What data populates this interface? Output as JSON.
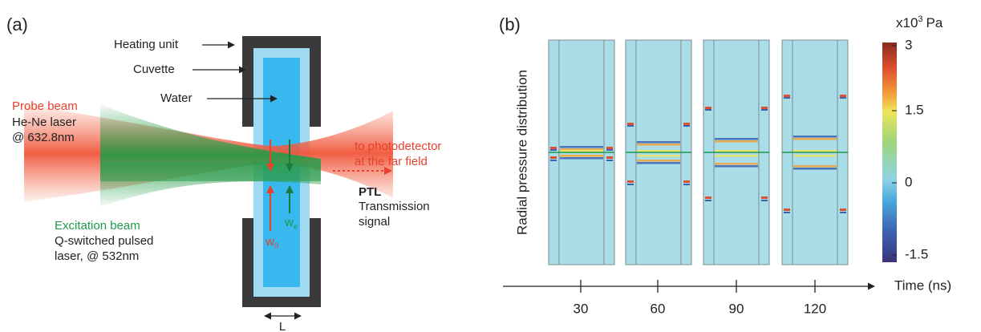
{
  "panel_a": {
    "label": "(a)",
    "heating_unit": "Heating unit",
    "cuvette": "Cuvette",
    "water": "Water",
    "probe_beam": {
      "title": "Probe beam",
      "lines": [
        "He-Ne laser",
        "@ 632.8nm"
      ]
    },
    "excitation_beam": {
      "title": "Excitation beam",
      "lines": [
        "Q-switched pulsed",
        "laser, @ 532nm"
      ]
    },
    "output": {
      "lines": [
        "to photodetector",
        "at the far field"
      ]
    },
    "ptl": {
      "title": "PTL",
      "lines": [
        "Transmission",
        "signal"
      ]
    },
    "w0": {
      "symbol": "w",
      "subscript": "0"
    },
    "we": {
      "symbol": "w",
      "subscript": "e"
    },
    "length": "L"
  },
  "panel_b": {
    "label": "(b)",
    "y_label": "Radial pressure distribution",
    "x_label": "Time (ns)",
    "time_ticks": [
      "30",
      "60",
      "90",
      "120"
    ],
    "colorbar": {
      "prefix": "x10",
      "exponent": "3",
      "unit": "Pa",
      "ticks": [
        "3",
        "1.5",
        "0",
        "-1.5"
      ]
    }
  }
}
